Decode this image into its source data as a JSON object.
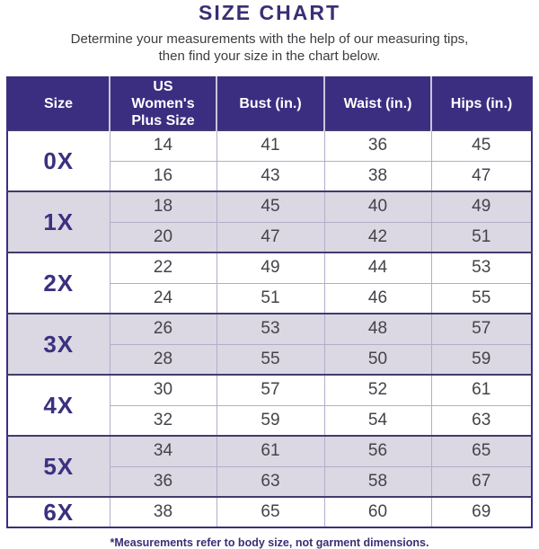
{
  "page": {
    "title": "SIZE CHART",
    "subtitle_line1": "Determine your measurements with the help of our measuring tips,",
    "subtitle_line2": "then find your size in the chart below.",
    "footnote": "*Measurements refer to body size, not garment dimensions."
  },
  "colors": {
    "header_background": "#3b2e80",
    "header_text": "#ffffff",
    "title_text": "#3a2f75",
    "size_label_text": "#3a3180",
    "data_text": "#444349",
    "alt_group_background": "#dbd7e3",
    "white_group_background": "#ffffff",
    "outer_border": "#3b2e80",
    "inner_grid_line": "#b3adc9"
  },
  "chart_data": {
    "type": "table",
    "title": "SIZE CHART",
    "columns": [
      "Size",
      "US Women's Plus Size",
      "Bust (in.)",
      "Waist (in.)",
      "Hips (in.)"
    ],
    "groups": [
      {
        "size": "0X",
        "rows": [
          [
            14,
            41,
            36,
            45
          ],
          [
            16,
            43,
            38,
            47
          ]
        ]
      },
      {
        "size": "1X",
        "rows": [
          [
            18,
            45,
            40,
            49
          ],
          [
            20,
            47,
            42,
            51
          ]
        ]
      },
      {
        "size": "2X",
        "rows": [
          [
            22,
            49,
            44,
            53
          ],
          [
            24,
            51,
            46,
            55
          ]
        ]
      },
      {
        "size": "3X",
        "rows": [
          [
            26,
            53,
            48,
            57
          ],
          [
            28,
            55,
            50,
            59
          ]
        ]
      },
      {
        "size": "4X",
        "rows": [
          [
            30,
            57,
            52,
            61
          ],
          [
            32,
            59,
            54,
            63
          ]
        ]
      },
      {
        "size": "5X",
        "rows": [
          [
            34,
            61,
            56,
            65
          ],
          [
            36,
            63,
            58,
            67
          ]
        ]
      },
      {
        "size": "6X",
        "rows": [
          [
            38,
            65,
            60,
            69
          ]
        ]
      }
    ],
    "layout": {
      "header_style": "dark-indigo band, white text",
      "group_row_backgrounds": "alternating white and light lavender per size group",
      "size_column_merged": true
    }
  }
}
